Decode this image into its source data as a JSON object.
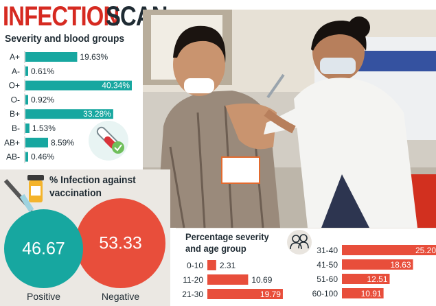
{
  "title": {
    "word1": "INFECTION",
    "word2": "SCAN"
  },
  "severity_section": {
    "title": "Severity and blood groups"
  },
  "infection_section": {
    "title": "% Infection against vaccination",
    "positive": {
      "value": "46.67",
      "label": "Positive"
    },
    "negative": {
      "value": "53.33",
      "label": "Negative"
    }
  },
  "age_section": {
    "title": "Percentage severity and age group"
  },
  "colors": {
    "red": "#e84e3b",
    "teal": "#17a7a0",
    "dark": "#1f2b33",
    "panel": "#ebe8e3"
  },
  "icons": [
    "blood-test-tube-icon",
    "syringe-vial-icon",
    "people-icon"
  ],
  "chart_data": [
    {
      "type": "bar",
      "orientation": "horizontal",
      "title": "Severity and blood groups",
      "categories": [
        "A+",
        "A-",
        "O+",
        "O-",
        "B+",
        "B-",
        "AB+",
        "AB-"
      ],
      "values": [
        19.63,
        0.61,
        40.34,
        0.92,
        33.28,
        1.53,
        8.59,
        0.46
      ],
      "labels": [
        "19.63%",
        "0.61%",
        "40.34%",
        "0.92%",
        "33.28%",
        "1.53%",
        "8.59%",
        "0.46%"
      ],
      "color": "#17a7a0"
    },
    {
      "type": "pie",
      "title": "% Infection against vaccination",
      "categories": [
        "Positive",
        "Negative"
      ],
      "values": [
        46.67,
        53.33
      ]
    },
    {
      "type": "bar",
      "orientation": "horizontal",
      "title": "Percentage severity and age group",
      "categories": [
        "0-10",
        "11-20",
        "21-30",
        "31-40",
        "41-50",
        "51-60",
        "60-100"
      ],
      "values": [
        2.31,
        10.69,
        19.79,
        25.2,
        18.63,
        12.51,
        10.91
      ],
      "labels": [
        "2.31",
        "10.69",
        "19.79",
        "25.20",
        "18.63",
        "12.51",
        "10.91"
      ],
      "color": "#e84e3b"
    }
  ]
}
